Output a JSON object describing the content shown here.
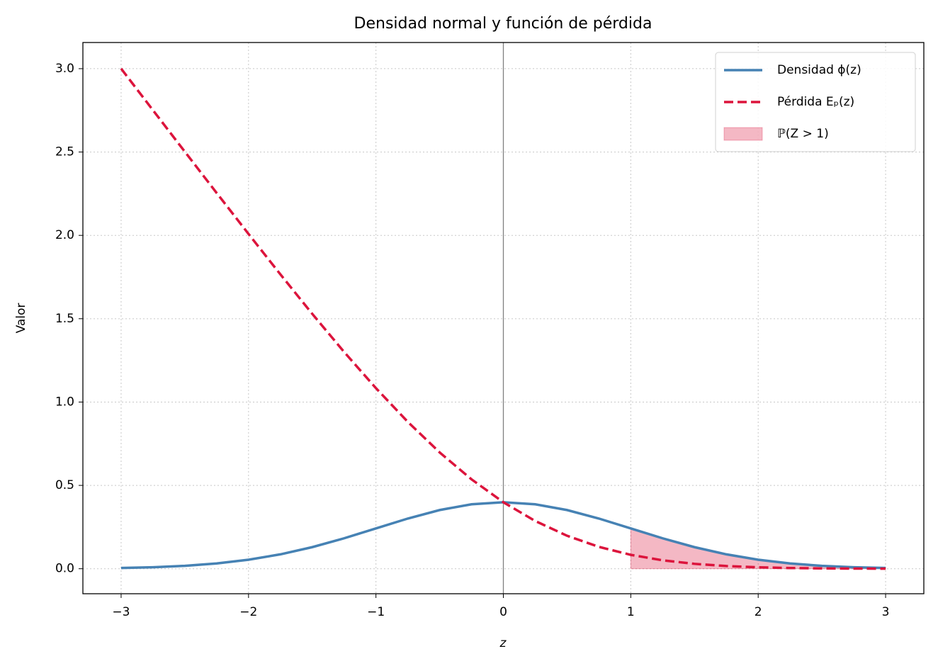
{
  "chart_data": {
    "type": "line",
    "title": "Densidad normal y función de pérdida",
    "xlabel": "z",
    "ylabel": "Valor",
    "x": [
      -3,
      -2.75,
      -2.5,
      -2.25,
      -2,
      -1.75,
      -1.5,
      -1.25,
      -1,
      -0.75,
      -0.5,
      -0.25,
      0,
      0.25,
      0.5,
      0.75,
      1,
      1.25,
      1.5,
      1.75,
      2,
      2.25,
      2.5,
      2.75,
      3
    ],
    "series": [
      {
        "name": "Densidad ϕ(z)",
        "color": "#4682b4",
        "dash": false,
        "values": [
          0.0044,
          0.0091,
          0.0175,
          0.0317,
          0.054,
          0.0863,
          0.1295,
          0.1826,
          0.242,
          0.3011,
          0.3521,
          0.3867,
          0.3989,
          0.3867,
          0.3521,
          0.3011,
          0.242,
          0.1826,
          0.1295,
          0.0863,
          0.054,
          0.0317,
          0.0175,
          0.0091,
          0.0044
        ]
      },
      {
        "name": "Pérdida Eₚ(z)",
        "color": "#dc143c",
        "dash": true,
        "values": [
          3.0004,
          2.7508,
          2.502,
          2.2542,
          2.0084,
          1.7661,
          1.5293,
          1.3006,
          1.0833,
          0.8812,
          0.6978,
          0.5364,
          0.3989,
          0.2864,
          0.1978,
          0.1312,
          0.0833,
          0.0506,
          0.0293,
          0.0161,
          0.0084,
          0.0042,
          0.002,
          0.0008,
          0.0004
        ]
      }
    ],
    "fill": {
      "name": "ℙ(Z > 1)",
      "color": "#dc143c",
      "x": [
        1,
        1.25,
        1.5,
        1.75,
        2,
        2.25,
        2.5,
        2.75,
        3
      ],
      "values": [
        0.242,
        0.1826,
        0.1295,
        0.0863,
        0.054,
        0.0317,
        0.0175,
        0.0091,
        0.0044
      ]
    },
    "vline": 0,
    "xlim": [
      -3.3,
      3.3
    ],
    "ylim": [
      -0.15,
      3.157
    ],
    "xticks": [
      {
        "value": -3,
        "label": "−3"
      },
      {
        "value": -2,
        "label": "−2"
      },
      {
        "value": -1,
        "label": "−1"
      },
      0,
      1,
      2,
      3
    ],
    "yticks": [
      {
        "value": 0,
        "label": "0.0"
      },
      {
        "value": 0.5,
        "label": "0.5"
      },
      {
        "value": 1,
        "label": "1.0"
      },
      {
        "value": 1.5,
        "label": "1.5"
      },
      {
        "value": 2,
        "label": "2.0"
      },
      {
        "value": 2.5,
        "label": "2.5"
      },
      {
        "value": 3,
        "label": "3.0"
      }
    ],
    "grid": true,
    "legend": "upper right"
  }
}
